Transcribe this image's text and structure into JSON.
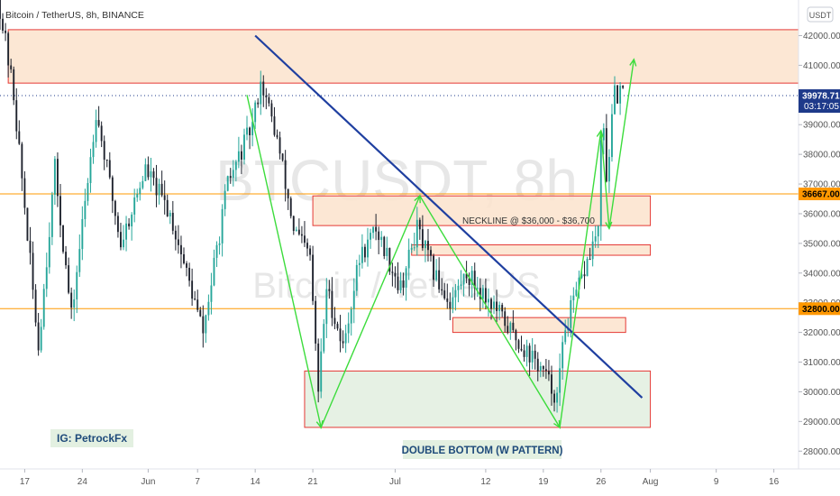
{
  "header": {
    "symbol_title": "Bitcoin / TetherUS, 8h, BINANCE",
    "currency_button": "USDT"
  },
  "watermark": {
    "line1": "BTCUSDT, 8h",
    "line2": "Bitcoin / TetherUS"
  },
  "price_labels": {
    "last": "39978.71",
    "countdown": "03:17:05",
    "level_upper": "36667.00",
    "level_lower": "32800.00"
  },
  "annotations": {
    "neckline": "NECKLINE @ $36,000 - $36,700",
    "pattern": "DOUBLE BOTTOM (W PATTERN)",
    "author": "IG: PetrockFx"
  },
  "colors": {
    "up": "#26a69a",
    "down": "#1e222d",
    "trendline": "#1f3fa0",
    "pattern_line": "#3cdc3c",
    "zone_orange_fill": "#fbe3cd",
    "zone_orange_stroke": "#e53935",
    "zone_green_fill": "#e3f0e1",
    "level_line": "#ff9800",
    "last_price_bg": "#1e3a8a",
    "level_label_bg": "#ff9800"
  },
  "chart_data": {
    "type": "candlestick",
    "title": "Bitcoin / TetherUS, 8h, BINANCE",
    "y_axis_ticks": [
      "28000.00",
      "29000.00",
      "30000.00",
      "31000.00",
      "32000.00",
      "33000.00",
      "34000.00",
      "35000.00",
      "36000.00",
      "37000.00",
      "38000.00",
      "39000.00",
      "40000.00",
      "41000.00",
      "42000.00"
    ],
    "ylim": [
      27400,
      43200
    ],
    "x_axis_ticks": [
      {
        "label": "17",
        "date": "2021-05-17"
      },
      {
        "label": "24",
        "date": "2021-05-24"
      },
      {
        "label": "Jun",
        "date": "2021-06-01"
      },
      {
        "label": "7",
        "date": "2021-06-07"
      },
      {
        "label": "14",
        "date": "2021-06-14"
      },
      {
        "label": "21",
        "date": "2021-06-21"
      },
      {
        "label": "Jul",
        "date": "2021-07-01"
      },
      {
        "label": "12",
        "date": "2021-07-12"
      },
      {
        "label": "19",
        "date": "2021-07-19"
      },
      {
        "label": "26",
        "date": "2021-07-26"
      },
      {
        "label": "Aug",
        "date": "2021-08-01"
      },
      {
        "label": "9",
        "date": "2021-08-09"
      },
      {
        "label": "16",
        "date": "2021-08-16"
      }
    ],
    "xlim": [
      "2021-05-14",
      "2021-08-19"
    ],
    "keypoints": [
      {
        "date": "2021-05-14",
        "price": 43500
      },
      {
        "date": "2021-05-16",
        "price": 40000
      },
      {
        "date": "2021-05-19",
        "price": 31500
      },
      {
        "date": "2021-05-21",
        "price": 37500
      },
      {
        "date": "2021-05-23",
        "price": 32500
      },
      {
        "date": "2021-05-26",
        "price": 39500
      },
      {
        "date": "2021-05-29",
        "price": 35000
      },
      {
        "date": "2021-06-01",
        "price": 37500
      },
      {
        "date": "2021-06-04",
        "price": 36000
      },
      {
        "date": "2021-06-07",
        "price": 33000
      },
      {
        "date": "2021-06-08",
        "price": 32000
      },
      {
        "date": "2021-06-11",
        "price": 37000
      },
      {
        "date": "2021-06-14",
        "price": 39000
      },
      {
        "date": "2021-06-15",
        "price": 40500
      },
      {
        "date": "2021-06-17",
        "price": 38500
      },
      {
        "date": "2021-06-19",
        "price": 35500
      },
      {
        "date": "2021-06-21",
        "price": 34500
      },
      {
        "date": "2021-06-22",
        "price": 30000
      },
      {
        "date": "2021-06-23",
        "price": 33500
      },
      {
        "date": "2021-06-25",
        "price": 31500
      },
      {
        "date": "2021-06-27",
        "price": 34500
      },
      {
        "date": "2021-06-29",
        "price": 35500
      },
      {
        "date": "2021-07-02",
        "price": 33500
      },
      {
        "date": "2021-07-04",
        "price": 35500
      },
      {
        "date": "2021-07-06",
        "price": 34000
      },
      {
        "date": "2021-07-08",
        "price": 33000
      },
      {
        "date": "2021-07-10",
        "price": 34000
      },
      {
        "date": "2021-07-13",
        "price": 33000
      },
      {
        "date": "2021-07-16",
        "price": 31800
      },
      {
        "date": "2021-07-19",
        "price": 30800
      },
      {
        "date": "2021-07-21",
        "price": 29800
      },
      {
        "date": "2021-07-22",
        "price": 32200
      },
      {
        "date": "2021-07-24",
        "price": 33800
      },
      {
        "date": "2021-07-26",
        "price": 35500
      },
      {
        "date": "2021-07-26T12:00",
        "price": 39500
      },
      {
        "date": "2021-07-27",
        "price": 37200
      },
      {
        "date": "2021-07-28",
        "price": 40000
      },
      {
        "date": "2021-07-28T16:00",
        "price": 39978.71
      }
    ],
    "last_price": 39978.71,
    "levels": [
      36667.0,
      32800.0
    ],
    "zones": [
      {
        "name": "resistance",
        "from": "2021-05-15",
        "to": "2021-08-19",
        "low": 40400,
        "high": 42200,
        "fill": "#fbe3cd"
      },
      {
        "name": "neckline",
        "from": "2021-06-21",
        "to": "2021-08-01",
        "low": 35600,
        "high": 36600,
        "fill": "#fbe3cd"
      },
      {
        "name": "resistance-small",
        "from": "2021-07-03",
        "to": "2021-08-01",
        "low": 34600,
        "high": 34950,
        "fill": "#fbe3cd"
      },
      {
        "name": "support-small",
        "from": "2021-07-08",
        "to": "2021-07-29",
        "low": 32000,
        "high": 32500,
        "fill": "#fbe3cd"
      },
      {
        "name": "double-bottom",
        "from": "2021-06-20",
        "to": "2021-08-01",
        "low": 28800,
        "high": 30700,
        "fill": "#e3f0e1"
      }
    ],
    "trendline": [
      {
        "date": "2021-06-14",
        "price": 42000
      },
      {
        "date": "2021-07-31",
        "price": 29800
      }
    ],
    "w_pattern": [
      {
        "date": "2021-06-13",
        "price": 40000
      },
      {
        "date": "2021-06-22",
        "price": 28800
      },
      {
        "date": "2021-07-04",
        "price": 36600
      },
      {
        "date": "2021-07-21",
        "price": 28800
      },
      {
        "date": "2021-07-26",
        "price": 38800
      },
      {
        "date": "2021-07-27",
        "price": 35500
      },
      {
        "date": "2021-07-30",
        "price": 41200
      }
    ]
  }
}
